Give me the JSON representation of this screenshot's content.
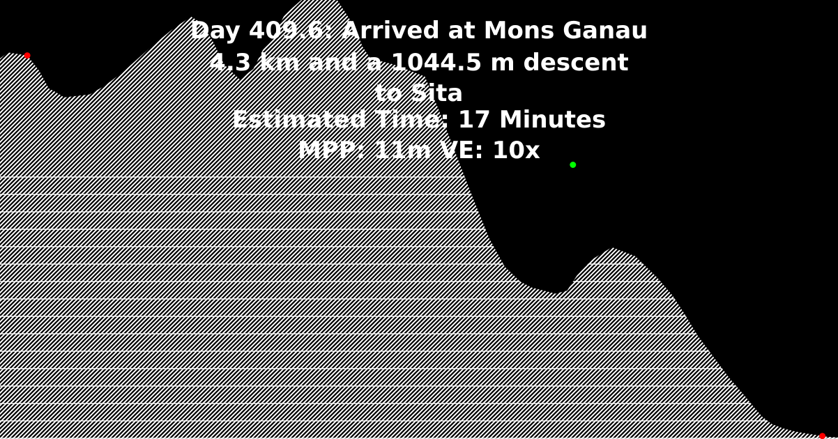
{
  "caption": {
    "line1": "Day 409.6: Arrived at Mons Ganau",
    "line2": "4.3 km and a 1044.5 m descent",
    "line3": "to Sita",
    "line4": "Estimated Time: 17 Minutes",
    "line5": "MPP: 11m VE: 10x"
  },
  "colors": {
    "background": "#000000",
    "terrain_hatch": "#ffffff",
    "start_marker": "#ff0000",
    "end_marker": "#ff0000",
    "current_position_marker": "#00ff00"
  },
  "chart_data": {
    "type": "area",
    "title": "",
    "xlabel": "",
    "ylabel": "",
    "x_units": "km",
    "y_units": "m",
    "total_distance_km": 4.3,
    "descent_m": 1044.5,
    "meters_per_pixel": 11,
    "vertical_exaggeration": 10,
    "ylim": [
      0,
      1465
    ],
    "series": [
      {
        "x": [
          0,
          0.04,
          0.14,
          0.2,
          0.25,
          0.28,
          0.33,
          0.46,
          0.54,
          0.64,
          0.76,
          0.88,
          0.98,
          1.03,
          1.09,
          1.15,
          1.23,
          1.3,
          1.35,
          1.4,
          1.46,
          1.58,
          1.66,
          1.72,
          1.76,
          1.82,
          1.86,
          1.9,
          2.02,
          2.18,
          2.26,
          2.34,
          2.42,
          2.51,
          2.59,
          2.67,
          2.73,
          2.85,
          2.91,
          2.96,
          3.04,
          3.14,
          3.26,
          3.37,
          3.45,
          3.51,
          3.58,
          3.66,
          3.74,
          3.82,
          3.87,
          3.91,
          3.96,
          4.02,
          4.08,
          4.14,
          4.2,
          4.24,
          4.3
        ],
        "elevation_m": [
          1270,
          1290,
          1280,
          1230,
          1170,
          1160,
          1140,
          1150,
          1180,
          1230,
          1300,
          1365,
          1410,
          1390,
          1330,
          1250,
          1200,
          1235,
          1300,
          1340,
          1415,
          1485,
          1505,
          1475,
          1435,
          1375,
          1310,
          1270,
          1250,
          1210,
          1085,
          950,
          815,
          670,
          575,
          525,
          505,
          485,
          495,
          545,
          600,
          640,
          610,
          540,
          480,
          420,
          345,
          275,
          205,
          145,
          105,
          75,
          50,
          35,
          25,
          18,
          12,
          8,
          5
        ]
      }
    ],
    "markers": [
      {
        "label": "start",
        "x": 0.14,
        "elevation_m": 1280,
        "color": "#ff0000"
      },
      {
        "label": "current",
        "x": 2.94,
        "elevation_m": 915,
        "color": "#00ff00"
      },
      {
        "label": "end",
        "x": 4.22,
        "elevation_m": 10,
        "color": "#ff0000"
      }
    ]
  }
}
